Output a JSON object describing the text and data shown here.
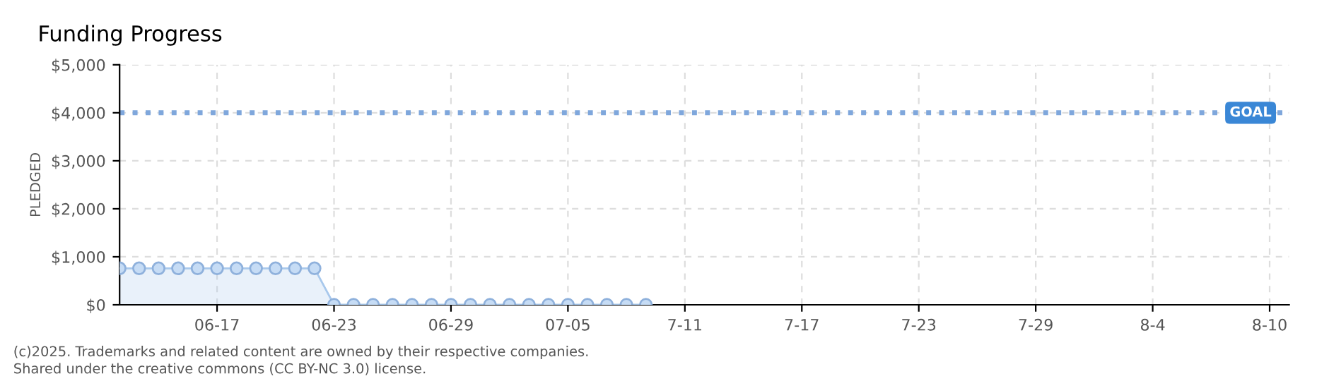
{
  "chart_data": {
    "type": "area",
    "title": "Funding Progress",
    "ylabel": "PLEDGED",
    "x": [
      "2025-06-12",
      "2025-06-13",
      "2025-06-14",
      "2025-06-15",
      "2025-06-16",
      "2025-06-17",
      "2025-06-18",
      "2025-06-19",
      "2025-06-20",
      "2025-06-21",
      "2025-06-22",
      "2025-06-23",
      "2025-06-24",
      "2025-06-25",
      "2025-06-26",
      "2025-06-27",
      "2025-06-28",
      "2025-06-29",
      "2025-06-30",
      "2025-07-01",
      "2025-07-02",
      "2025-07-03",
      "2025-07-04",
      "2025-07-05",
      "2025-07-06",
      "2025-07-07",
      "2025-07-08",
      "2025-07-09"
    ],
    "series": [
      {
        "color": "#a8c8ec",
        "values": [
          760,
          760,
          760,
          760,
          760,
          760,
          760,
          760,
          760,
          760,
          760,
          0,
          0,
          0,
          0,
          0,
          0,
          0,
          0,
          0,
          0,
          0,
          0,
          0,
          0,
          0,
          0,
          0
        ]
      }
    ],
    "marker": "circle",
    "xlim": [
      "2025-06-12",
      "2025-08-11"
    ],
    "xticks": [
      {
        "value": "2025-06-17",
        "label": "06-17"
      },
      {
        "value": "2025-06-23",
        "label": "06-23"
      },
      {
        "value": "2025-06-29",
        "label": "06-29"
      },
      {
        "value": "2025-07-05",
        "label": "07-05"
      },
      {
        "value": "2025-07-11",
        "label": "7-11"
      },
      {
        "value": "2025-07-17",
        "label": "7-17"
      },
      {
        "value": "2025-07-23",
        "label": "7-23"
      },
      {
        "value": "2025-07-29",
        "label": "7-29"
      },
      {
        "value": "2025-08-04",
        "label": "8-4"
      },
      {
        "value": "2025-08-10",
        "label": "8-10"
      }
    ],
    "ylim": [
      0,
      5000
    ],
    "yticks": [
      {
        "value": 0,
        "label": "$0"
      },
      {
        "value": 1000,
        "label": "$1,000"
      },
      {
        "value": 2000,
        "label": "$2,000"
      },
      {
        "value": 3000,
        "label": "$3,000"
      },
      {
        "value": 4000,
        "label": "$4,000"
      },
      {
        "value": 5000,
        "label": "$5,000"
      }
    ],
    "ref_lines": [
      {
        "axis": "y",
        "value": 4000,
        "label": "GOAL",
        "color": "#7fa7dc",
        "line_style": "dotted"
      }
    ],
    "grid": true,
    "annotations": [
      "(c)2025. Trademarks and related content are owned by their respective companies.",
      "Shared under the creative commons (CC BY-NC 3.0) license."
    ]
  }
}
